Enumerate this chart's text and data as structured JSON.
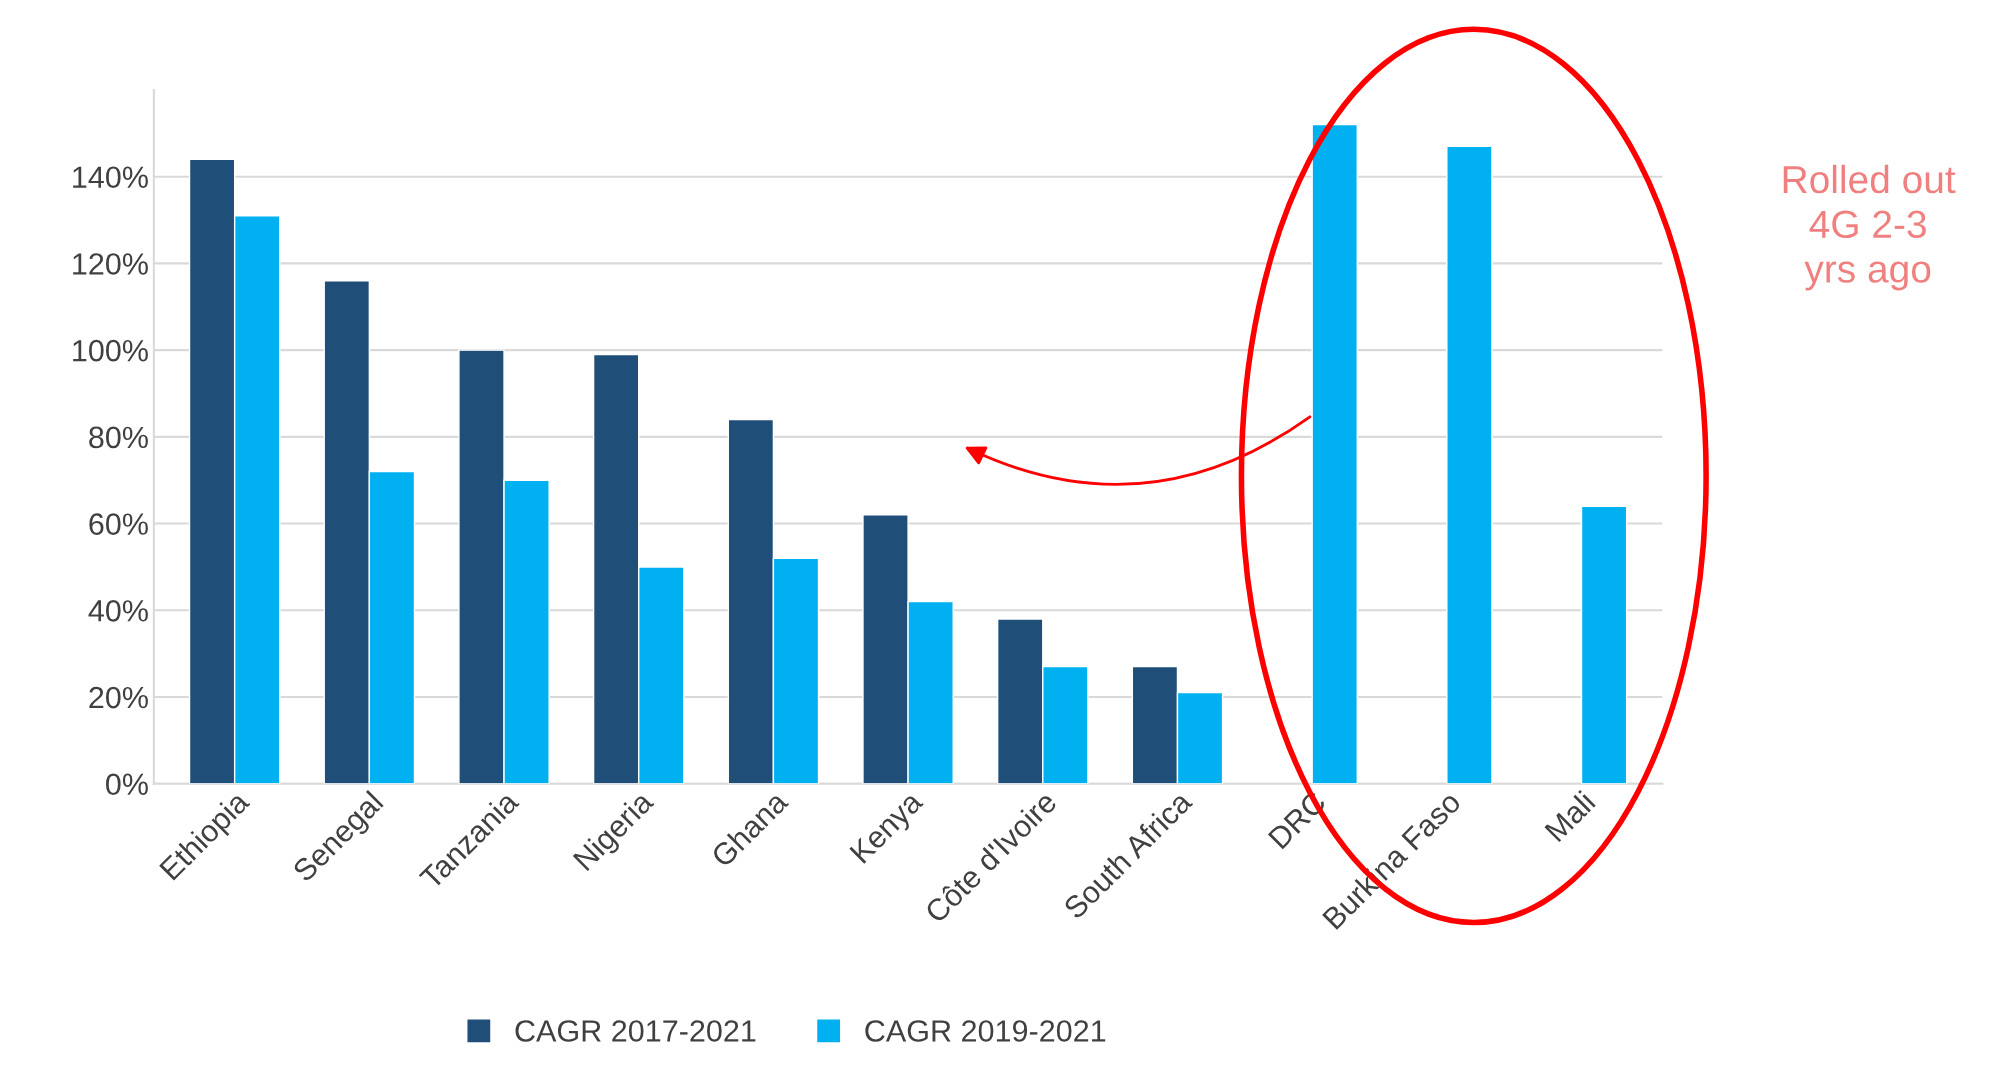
{
  "chart_data": {
    "type": "bar",
    "categories": [
      "Ethiopia",
      "Senegal",
      "Tanzania",
      "Nigeria",
      "Ghana",
      "Kenya",
      "Côte d'Ivoire",
      "South Africa",
      "DRC",
      "Burkina Faso",
      "Mali"
    ],
    "series": [
      {
        "name": "CAGR 2017-2021",
        "color": "#1f4e79",
        "values": [
          144,
          116,
          100,
          99,
          84,
          62,
          38,
          27,
          null,
          null,
          null
        ]
      },
      {
        "name": "CAGR 2019-2021",
        "color": "#00b0f0",
        "values": [
          131,
          72,
          70,
          50,
          52,
          42,
          27,
          21,
          152,
          147,
          64
        ]
      }
    ],
    "ylim": [
      0,
      160
    ],
    "yticks": [
      {
        "value": 0,
        "label": "0%"
      },
      {
        "value": 20,
        "label": "20%"
      },
      {
        "value": 40,
        "label": "40%"
      },
      {
        "value": 60,
        "label": "60%"
      },
      {
        "value": 80,
        "label": "80%"
      },
      {
        "value": 100,
        "label": "100%"
      },
      {
        "value": 120,
        "label": "120%"
      },
      {
        "value": 140,
        "label": "140%"
      }
    ],
    "grid": "y",
    "legend": "bottom",
    "annotations": [
      "Rolled out\n4G 2-3\nyrs ago"
    ]
  }
}
